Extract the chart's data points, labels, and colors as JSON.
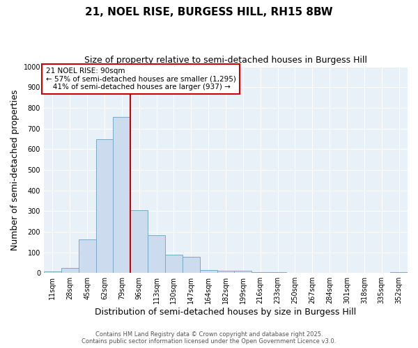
{
  "title": "21, NOEL RISE, BURGESS HILL, RH15 8BW",
  "subtitle": "Size of property relative to semi-detached houses in Burgess Hill",
  "xlabel": "Distribution of semi-detached houses by size in Burgess Hill",
  "ylabel": "Number of semi-detached properties",
  "bins": [
    "11sqm",
    "28sqm",
    "45sqm",
    "62sqm",
    "79sqm",
    "96sqm",
    "113sqm",
    "130sqm",
    "147sqm",
    "164sqm",
    "182sqm",
    "199sqm",
    "216sqm",
    "233sqm",
    "250sqm",
    "267sqm",
    "284sqm",
    "301sqm",
    "318sqm",
    "335sqm",
    "352sqm"
  ],
  "values": [
    7,
    25,
    162,
    648,
    755,
    305,
    183,
    90,
    78,
    15,
    10,
    10,
    5,
    5,
    2,
    2,
    1,
    1,
    1,
    1,
    5
  ],
  "bar_color": "#ccdcee",
  "bar_edge_color": "#7aaac8",
  "vline_color": "#cc0000",
  "vline_x": 4.5,
  "annotation_text": "21 NOEL RISE: 90sqm\n← 57% of semi-detached houses are smaller (1,295)\n   41% of semi-detached houses are larger (937) →",
  "annotation_box_facecolor": "#ffffff",
  "annotation_box_edgecolor": "#cc0000",
  "ylim": [
    0,
    1000
  ],
  "yticks": [
    0,
    100,
    200,
    300,
    400,
    500,
    600,
    700,
    800,
    900,
    1000
  ],
  "fig_bg": "#ffffff",
  "ax_bg": "#e8f0f8",
  "grid_color": "#ffffff",
  "title_fontsize": 11,
  "subtitle_fontsize": 9,
  "tick_fontsize": 7,
  "label_fontsize": 9,
  "footnote1": "Contains HM Land Registry data © Crown copyright and database right 2025.",
  "footnote2": "Contains public sector information licensed under the Open Government Licence v3.0."
}
